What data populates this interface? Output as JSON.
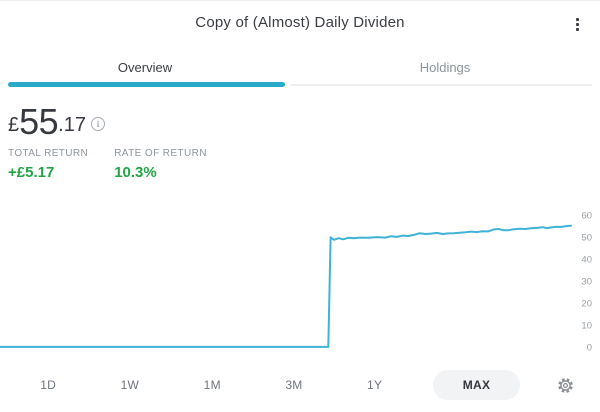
{
  "header": {
    "title": "Copy of (Almost) Daily Dividen",
    "menu_icon": "kebab-vertical"
  },
  "tabs": [
    {
      "label": "Overview",
      "active": true
    },
    {
      "label": "Holdings",
      "active": false
    }
  ],
  "portfolio": {
    "currency_symbol": "£",
    "value_major": "55",
    "value_minor": ".17",
    "info_icon": "info-circle",
    "info_glyph": "i",
    "stats": [
      {
        "label": "TOTAL RETURN",
        "value": "+£5.17"
      },
      {
        "label": "RATE OF RETURN",
        "value": "10.3%"
      }
    ]
  },
  "chart_data": {
    "type": "line",
    "title": "Portfolio value over time (MAX range)",
    "xlabel": "",
    "ylabel": "",
    "ylim": [
      0,
      60
    ],
    "yticks": [
      60,
      50,
      40,
      30,
      20,
      10,
      0
    ],
    "yticks_position": "right",
    "grid": false,
    "line_color": "#3fb3d6",
    "points_format": "[x_percent_of_range, value_gbp]",
    "points": [
      [
        0,
        0.5
      ],
      [
        57.5,
        0.5
      ],
      [
        57.9,
        50.3
      ],
      [
        58.5,
        49.2
      ],
      [
        59.3,
        49.9
      ],
      [
        60.1,
        49.4
      ],
      [
        61,
        50.1
      ],
      [
        62,
        49.9
      ],
      [
        63,
        50.2
      ],
      [
        64.5,
        50.1
      ],
      [
        66,
        50.4
      ],
      [
        67.5,
        50.2
      ],
      [
        68.5,
        50.8
      ],
      [
        69.5,
        50.5
      ],
      [
        70.5,
        51.1
      ],
      [
        71.5,
        50.9
      ],
      [
        72.5,
        51.4
      ],
      [
        73.5,
        52.2
      ],
      [
        74.5,
        51.8
      ],
      [
        75.5,
        52.0
      ],
      [
        76.5,
        52.3
      ],
      [
        77.5,
        51.8
      ],
      [
        78.5,
        52.1
      ],
      [
        79.5,
        52.2
      ],
      [
        80.5,
        52.4
      ],
      [
        81.5,
        52.6
      ],
      [
        82.5,
        52.9
      ],
      [
        83.5,
        52.7
      ],
      [
        84.5,
        53.1
      ],
      [
        85.5,
        53.0
      ],
      [
        86.5,
        53.9
      ],
      [
        87.3,
        54.1
      ],
      [
        88.2,
        53.5
      ],
      [
        89,
        53.5
      ],
      [
        90,
        54.0
      ],
      [
        91,
        54.2
      ],
      [
        92,
        54.1
      ],
      [
        93,
        54.4
      ],
      [
        94,
        54.6
      ],
      [
        95,
        54.9
      ],
      [
        95.8,
        54.5
      ],
      [
        96.6,
        54.8
      ],
      [
        97.4,
        55.1
      ],
      [
        98.2,
        55.0
      ],
      [
        99,
        55.3
      ],
      [
        99.6,
        55.5
      ],
      [
        100,
        55.6
      ]
    ]
  },
  "range": {
    "buttons": [
      {
        "label": "1D",
        "selected": false
      },
      {
        "label": "1W",
        "selected": false
      },
      {
        "label": "1M",
        "selected": false
      },
      {
        "label": "3M",
        "selected": false
      },
      {
        "label": "1Y",
        "selected": false
      },
      {
        "label": "MAX",
        "selected": true
      }
    ],
    "settings_icon": "gear"
  },
  "colors": {
    "accent_teal": "#2ba9c9",
    "chart_line": "#3fb3d6",
    "positive_green": "#22a447",
    "selected_pill_bg": "#f2f3f4",
    "muted_text": "#8d959c",
    "dark_text": "#3a3d42"
  }
}
